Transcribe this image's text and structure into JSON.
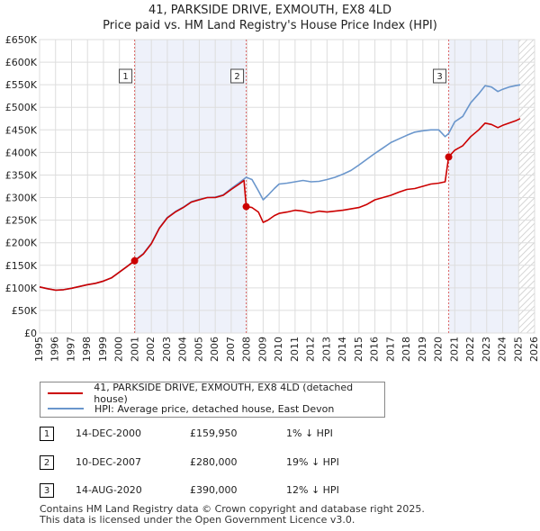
{
  "header": {
    "title_line1": "41, PARKSIDE DRIVE, EXMOUTH, EX8 4LD",
    "title_line2": "Price paid vs. HM Land Registry's House Price Index (HPI)"
  },
  "colors": {
    "red": "#cc0000",
    "blue": "#6a96cc",
    "shade": "#eef1fa",
    "grid": "#dddddd"
  },
  "legend": {
    "red_label": "41, PARKSIDE DRIVE, EXMOUTH, EX8 4LD (detached house)",
    "blue_label": "HPI: Average price, detached house, East Devon"
  },
  "sales": [
    {
      "num": "1",
      "date": "14-DEC-2000",
      "price": "£159,950",
      "hpi": "1% ↓ HPI"
    },
    {
      "num": "2",
      "date": "10-DEC-2007",
      "price": "£280,000",
      "hpi": "19% ↓ HPI"
    },
    {
      "num": "3",
      "date": "14-AUG-2020",
      "price": "£390,000",
      "hpi": "12% ↓ HPI"
    }
  ],
  "footer": {
    "line1": "Contains HM Land Registry data © Crown copyright and database right 2025.",
    "line2": "This data is licensed under the Open Government Licence v3.0."
  },
  "chart_data": {
    "type": "line",
    "xlim": [
      1995,
      2026
    ],
    "ylim": [
      0,
      650000
    ],
    "x_ticks": [
      1995,
      1996,
      1997,
      1998,
      1999,
      2000,
      2001,
      2002,
      2003,
      2004,
      2005,
      2006,
      2007,
      2008,
      2009,
      2010,
      2011,
      2012,
      2013,
      2014,
      2015,
      2016,
      2017,
      2018,
      2019,
      2020,
      2021,
      2022,
      2023,
      2024,
      2025,
      2026
    ],
    "y_ticks": [
      {
        "value": 0,
        "label": "£0"
      },
      {
        "value": 50000,
        "label": "£50K"
      },
      {
        "value": 100000,
        "label": "£100K"
      },
      {
        "value": 150000,
        "label": "£150K"
      },
      {
        "value": 200000,
        "label": "£200K"
      },
      {
        "value": 250000,
        "label": "£250K"
      },
      {
        "value": 300000,
        "label": "£300K"
      },
      {
        "value": 350000,
        "label": "£350K"
      },
      {
        "value": 400000,
        "label": "£400K"
      },
      {
        "value": 450000,
        "label": "£450K"
      },
      {
        "value": 500000,
        "label": "£500K"
      },
      {
        "value": 550000,
        "label": "£550K"
      },
      {
        "value": 600000,
        "label": "£600K"
      },
      {
        "value": 650000,
        "label": "£650K"
      }
    ],
    "shaded_ranges": [
      [
        2000.95,
        2007.94
      ],
      [
        2020.62,
        2025.0
      ]
    ],
    "hatch_from": 2025.0,
    "series": [
      {
        "name": "41, PARKSIDE DRIVE, EXMOUTH, EX8 4LD (detached house)",
        "color": "#cc0000",
        "x": [
          1995.0,
          1995.5,
          1996.0,
          1996.5,
          1997.0,
          1997.5,
          1998.0,
          1998.5,
          1999.0,
          1999.5,
          2000.0,
          2000.5,
          2000.95,
          2001.5,
          2002.0,
          2002.5,
          2003.0,
          2003.5,
          2004.0,
          2004.5,
          2005.0,
          2005.5,
          2006.0,
          2006.5,
          2007.0,
          2007.5,
          2007.8,
          2007.94,
          2008.3,
          2008.7,
          2009.0,
          2009.3,
          2009.7,
          2010.0,
          2010.5,
          2011.0,
          2011.5,
          2012.0,
          2012.5,
          2013.0,
          2013.5,
          2014.0,
          2014.5,
          2015.0,
          2015.5,
          2016.0,
          2016.5,
          2017.0,
          2017.5,
          2018.0,
          2018.5,
          2019.0,
          2019.5,
          2020.0,
          2020.4,
          2020.62,
          2021.0,
          2021.5,
          2022.0,
          2022.5,
          2022.9,
          2023.3,
          2023.7,
          2024.0,
          2024.4,
          2024.8,
          2025.1
        ],
        "values": [
          102000,
          98000,
          95000,
          96000,
          99000,
          103000,
          107000,
          110000,
          115000,
          122000,
          135000,
          148000,
          159950,
          175000,
          198000,
          232000,
          255000,
          268000,
          278000,
          290000,
          295000,
          300000,
          300000,
          305000,
          318000,
          330000,
          338000,
          280000,
          278000,
          268000,
          245000,
          250000,
          260000,
          265000,
          268000,
          272000,
          270000,
          266000,
          270000,
          268000,
          270000,
          272000,
          275000,
          278000,
          285000,
          295000,
          300000,
          305000,
          312000,
          318000,
          320000,
          325000,
          330000,
          332000,
          335000,
          390000,
          405000,
          415000,
          435000,
          450000,
          465000,
          462000,
          455000,
          460000,
          465000,
          470000,
          475000
        ]
      },
      {
        "name": "HPI: Average price, detached house, East Devon",
        "color": "#6a96cc",
        "x": [
          1995.0,
          1995.5,
          1996.0,
          1996.5,
          1997.0,
          1997.5,
          1998.0,
          1998.5,
          1999.0,
          1999.5,
          2000.0,
          2000.5,
          2000.95,
          2001.5,
          2002.0,
          2002.5,
          2003.0,
          2003.5,
          2004.0,
          2004.5,
          2005.0,
          2005.5,
          2006.0,
          2006.5,
          2007.0,
          2007.5,
          2007.94,
          2008.3,
          2008.7,
          2009.0,
          2009.3,
          2009.7,
          2010.0,
          2010.5,
          2011.0,
          2011.5,
          2012.0,
          2012.5,
          2013.0,
          2013.5,
          2014.0,
          2014.5,
          2015.0,
          2015.5,
          2016.0,
          2016.5,
          2017.0,
          2017.5,
          2018.0,
          2018.5,
          2019.0,
          2019.5,
          2020.0,
          2020.4,
          2020.62,
          2021.0,
          2021.5,
          2022.0,
          2022.5,
          2022.9,
          2023.3,
          2023.7,
          2024.0,
          2024.4,
          2024.8,
          2025.1
        ],
        "values": [
          102000,
          98000,
          95000,
          96000,
          99000,
          103000,
          107000,
          110000,
          115000,
          122000,
          135000,
          148000,
          161000,
          176000,
          199000,
          233000,
          256000,
          269000,
          279000,
          291000,
          296000,
          300000,
          301000,
          306000,
          320000,
          333000,
          345000,
          340000,
          315000,
          295000,
          305000,
          320000,
          330000,
          332000,
          335000,
          338000,
          335000,
          336000,
          340000,
          345000,
          352000,
          360000,
          372000,
          385000,
          398000,
          410000,
          422000,
          430000,
          438000,
          445000,
          448000,
          450000,
          450000,
          435000,
          442000,
          468000,
          480000,
          510000,
          530000,
          548000,
          545000,
          535000,
          540000,
          545000,
          548000,
          550000
        ]
      }
    ],
    "sale_points": [
      {
        "label": "1",
        "x": 2000.95,
        "value": 159950
      },
      {
        "label": "2",
        "x": 2007.94,
        "value": 280000
      },
      {
        "label": "3",
        "x": 2020.62,
        "value": 390000
      }
    ]
  }
}
